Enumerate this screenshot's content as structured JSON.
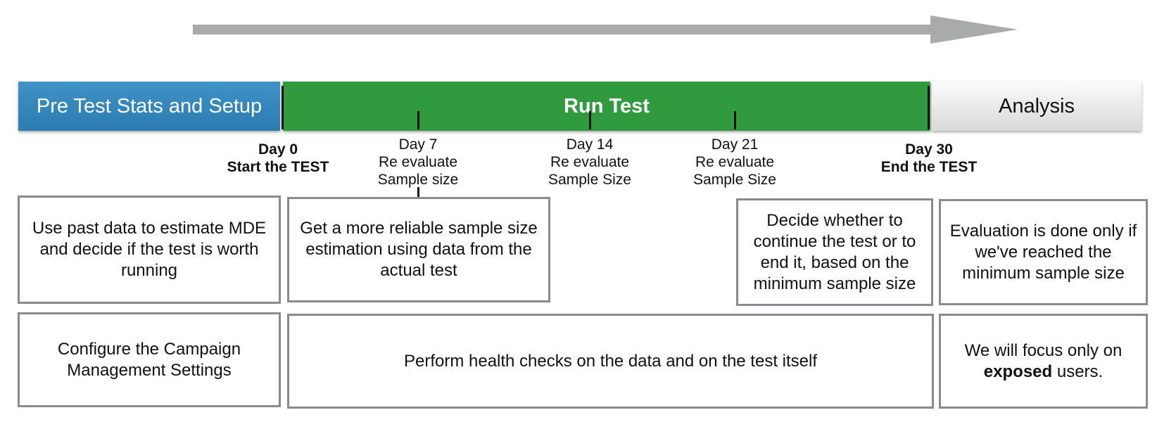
{
  "phases": {
    "pre": "Pre Test Stats and Setup",
    "run": "Run Test",
    "analysis": "Analysis"
  },
  "milestones": {
    "day0": {
      "day": "Day 0",
      "note": "Start the TEST"
    },
    "day7": {
      "day": "Day 7",
      "line1": "Re evaluate",
      "line2": "Sample size"
    },
    "day14": {
      "day": "Day 14",
      "line1": "Re evaluate",
      "line2": "Sample Size"
    },
    "day21": {
      "day": "Day 21",
      "line1": "Re evaluate",
      "line2": "Sample Size"
    },
    "day30": {
      "day": "Day 30",
      "note": "End the TEST"
    }
  },
  "boxes": {
    "past_data": "Use past data to estimate MDE and decide if the test is worth running",
    "reliable_sample": "Get a more reliable sample size estimation using data from the actual test",
    "decide_continue": "Decide whether to continue the test or to end it, based on the minimum sample size",
    "evaluation": "Evaluation is done only if we've reached the minimum sample size",
    "configure": "Configure the Campaign Management Settings",
    "health_checks": "Perform health checks on the data and on the test itself",
    "focus_exposed": {
      "before": "We will focus only on ",
      "bold": "exposed",
      "after": " users."
    }
  },
  "colors": {
    "arrow": "#a9abab",
    "pre_phase": "#2f84bb",
    "run_phase": "#2f9b3e",
    "analysis_phase": "#e6e6e6",
    "box_border": "#8a8a92"
  }
}
